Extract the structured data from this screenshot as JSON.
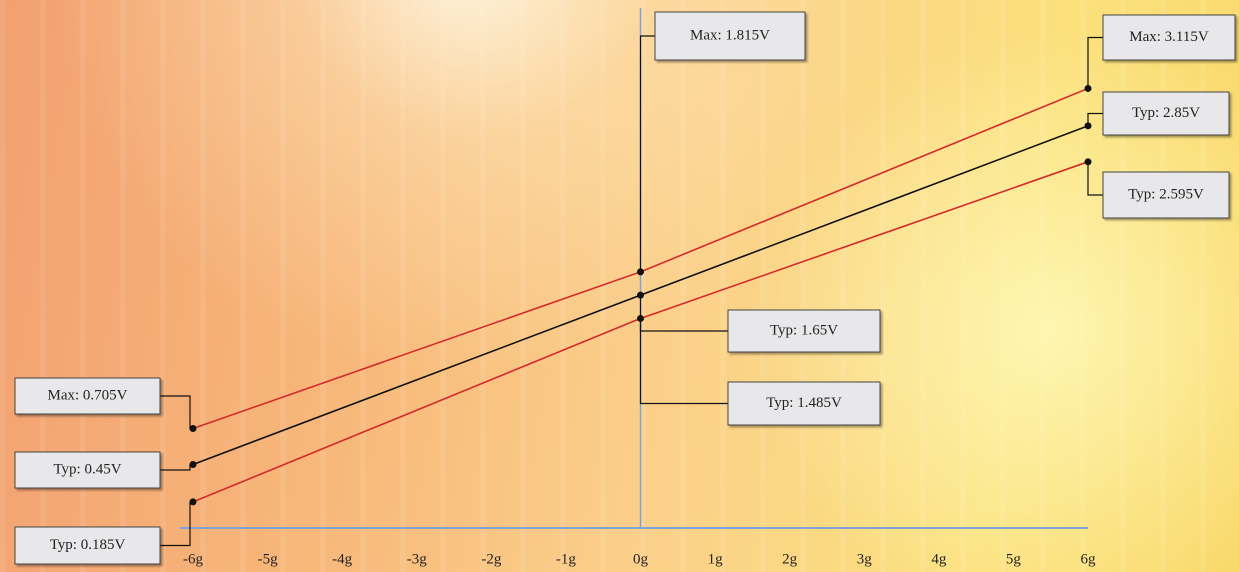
{
  "chart_data": {
    "type": "line",
    "x": [
      -6,
      0,
      6
    ],
    "xlim": [
      -6,
      6
    ],
    "xticks": [
      {
        "value": -6,
        "label": "-6g"
      },
      {
        "value": -5,
        "label": "-5g"
      },
      {
        "value": -4,
        "label": "-4g"
      },
      {
        "value": -3,
        "label": "-3g"
      },
      {
        "value": -2,
        "label": "-2g"
      },
      {
        "value": -1,
        "label": "-1g"
      },
      {
        "value": 0,
        "label": "0g"
      },
      {
        "value": 1,
        "label": "1g"
      },
      {
        "value": 2,
        "label": "2g"
      },
      {
        "value": 3,
        "label": "3g"
      },
      {
        "value": 4,
        "label": "4g"
      },
      {
        "value": 5,
        "label": "5g"
      },
      {
        "value": 6,
        "label": "6g"
      }
    ],
    "ylim": [
      0,
      3.6
    ],
    "axis_color": "#7fa3d8",
    "series": [
      {
        "color": "#d42a2a",
        "values": [
          0.705,
          1.815,
          3.115
        ],
        "value_labels": [
          "Max: 0.705V",
          "Max: 1.815V",
          "Max: 3.115V"
        ]
      },
      {
        "color": "#111111",
        "values": [
          0.45,
          1.65,
          2.85
        ],
        "value_labels": [
          "Typ: 0.45V",
          "Typ: 1.65V",
          "Typ: 2.85V"
        ]
      },
      {
        "color": "#d42a2a",
        "values": [
          0.185,
          1.485,
          2.595
        ],
        "value_labels": [
          "Typ: 0.185V",
          "Typ: 1.485V",
          "Typ: 2.595V"
        ]
      }
    ]
  }
}
